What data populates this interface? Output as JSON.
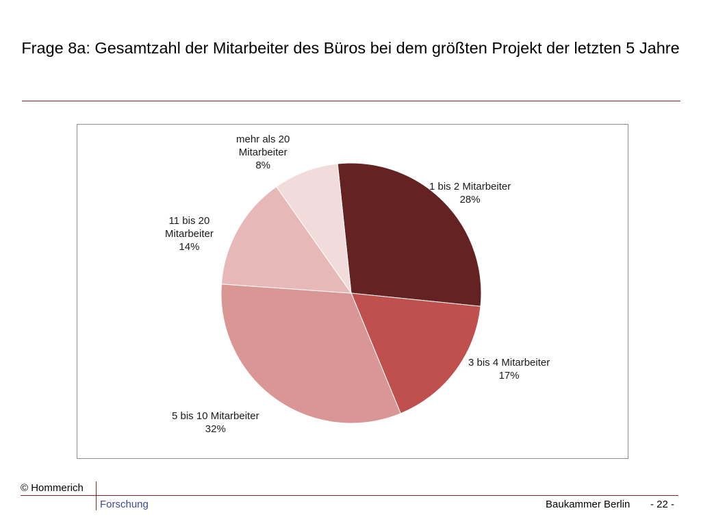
{
  "slide": {
    "title": "Frage 8a: Gesamtzahl der Mitarbeiter des Büros bei dem größten Projekt der letzten 5 Jahre"
  },
  "chart_data": {
    "type": "pie",
    "title": "",
    "start_angle_deg": -6,
    "direction": "clockwise",
    "slices": [
      {
        "label_lines": [
          "1 bis 2 Mitarbeiter"
        ],
        "value": 28,
        "value_label": "28%",
        "color": "#642222"
      },
      {
        "label_lines": [
          "3 bis 4 Mitarbeiter"
        ],
        "value": 17,
        "value_label": "17%",
        "color": "#c0504d"
      },
      {
        "label_lines": [
          "5 bis 10 Mitarbeiter"
        ],
        "value": 32,
        "value_label": "32%",
        "color": "#d99694"
      },
      {
        "label_lines": [
          "11 bis 20",
          "Mitarbeiter"
        ],
        "value": 14,
        "value_label": "14%",
        "color": "#e6b9b8"
      },
      {
        "label_lines": [
          "mehr als 20",
          "Mitarbeiter"
        ],
        "value": 8,
        "value_label": "8%",
        "color": "#f2dcdb"
      }
    ]
  },
  "footer": {
    "copyright": "© Hommerich",
    "department": "Forschung",
    "organization": "Baukammer Berlin",
    "page": "- 22 -"
  }
}
